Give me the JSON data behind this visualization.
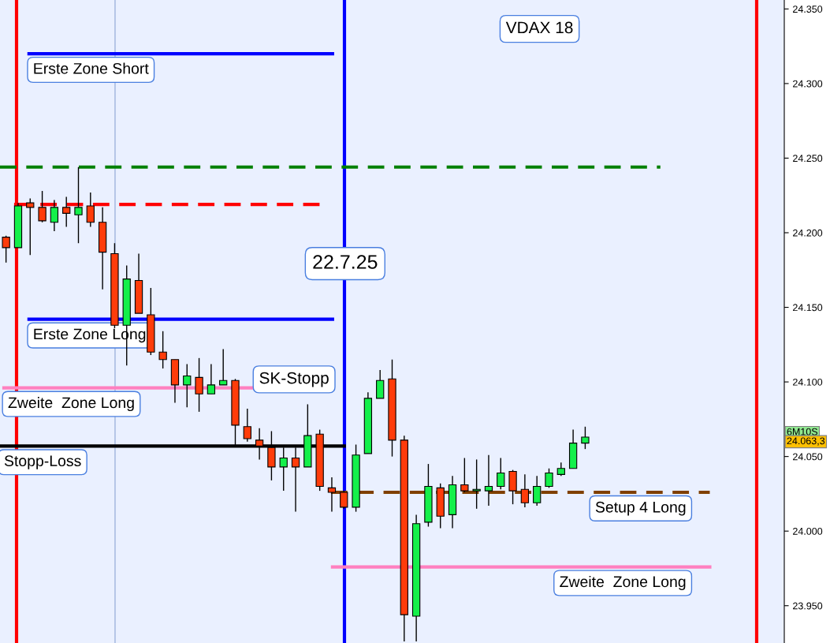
{
  "chart_data": {
    "type": "candlestick",
    "categories": [
      null,
      null,
      null,
      null,
      null,
      null,
      null,
      null,
      null,
      null,
      null,
      null,
      null,
      null,
      null,
      null,
      null,
      null,
      null,
      null,
      null,
      null,
      null,
      null,
      null,
      null,
      null,
      null,
      null,
      null,
      null,
      null,
      null,
      null,
      null,
      null,
      null,
      null,
      null,
      null,
      null,
      null,
      null,
      null,
      null,
      null,
      null,
      null,
      null,
      null,
      null,
      null,
      null,
      null,
      null,
      null,
      null,
      null,
      null,
      null,
      null,
      null,
      null,
      null,
      null
    ],
    "ohlc": [
      [
        24197,
        24198,
        24180,
        24190
      ],
      [
        24190,
        24220,
        24190,
        24218
      ],
      [
        24220,
        24223,
        24185,
        24217
      ],
      [
        24217,
        24228,
        24207,
        24208
      ],
      [
        24207,
        24222,
        24201,
        24217
      ],
      [
        24217,
        24224,
        24204,
        24213
      ],
      [
        24212,
        24244,
        24193,
        24217
      ],
      [
        24218,
        24227,
        24204,
        24207
      ],
      [
        24207,
        24217,
        24162,
        24187
      ],
      [
        24186,
        24193,
        24136,
        24138
      ],
      [
        24138,
        24178,
        24111,
        24169
      ],
      [
        24168,
        24186,
        24146,
        24146
      ],
      [
        24145,
        24163,
        24118,
        24120
      ],
      [
        24120,
        24134,
        24109,
        24115
      ],
      [
        24115,
        24115,
        24086,
        24098
      ],
      [
        24098,
        24112,
        24083,
        24104
      ],
      [
        24103,
        24116,
        24080,
        24092
      ],
      [
        24092,
        24112,
        24092,
        24098
      ],
      [
        24098,
        24122,
        24098,
        24101
      ],
      [
        24101,
        24102,
        24057,
        24071
      ],
      [
        24070,
        24082,
        24060,
        24062
      ],
      [
        24061,
        24069,
        24048,
        24057
      ],
      [
        24056,
        24067,
        24034,
        24043
      ],
      [
        24043,
        24056,
        24027,
        24049
      ],
      [
        24049,
        24056,
        24013,
        24043
      ],
      [
        24043,
        24085,
        24043,
        24064
      ],
      [
        24065,
        24068,
        24027,
        24030
      ],
      [
        24029,
        24036,
        24013,
        24026
      ],
      [
        24026,
        24027,
        24015,
        24016
      ],
      [
        24016,
        24058,
        24013,
        24051
      ],
      [
        24052,
        24093,
        24052,
        24089
      ],
      [
        24089,
        24108,
        24089,
        24101
      ],
      [
        24102,
        24115,
        24050,
        24061
      ],
      [
        24061,
        24064,
        23926,
        23944
      ],
      [
        23943,
        24011,
        23926,
        24005
      ],
      [
        24006,
        24045,
        24003,
        24030
      ],
      [
        24029,
        24032,
        24002,
        24010
      ],
      [
        24011,
        24037,
        24002,
        24031
      ],
      [
        24031,
        24049,
        24026,
        24027
      ],
      [
        24027,
        24048,
        24015,
        24028
      ],
      [
        24027,
        24051,
        24017,
        24030
      ],
      [
        24030,
        24049,
        24028,
        24039
      ],
      [
        24040,
        24041,
        24018,
        24027
      ],
      [
        24028,
        24038,
        24016,
        24019
      ],
      [
        24019,
        24037,
        24017,
        24030
      ],
      [
        24030,
        24042,
        24029,
        24039
      ],
      [
        24038,
        24046,
        24037,
        24042
      ],
      [
        24042,
        24068,
        24042,
        24059
      ],
      [
        24059,
        24070,
        24055,
        24063
      ],
      null,
      null,
      null,
      null,
      null,
      null,
      null,
      null,
      null,
      null,
      null,
      null,
      null,
      null,
      null,
      null
    ],
    "colors": [
      "#ff3c0a",
      "#14f04a",
      "#ff3c0a",
      "#ff3c0a",
      "#14f04a",
      "#ff3c0a",
      "#14f04a",
      "#ff3c0a",
      "#ff3c0a",
      "#ff3c0a",
      "#14f04a",
      "#ff3c0a",
      "#ff3c0a",
      "#ff3c0a",
      "#ff3c0a",
      "#14f04a",
      "#ff3c0a",
      "#14f04a",
      "#14f04a",
      "#ff3c0a",
      "#ff3c0a",
      "#ff3c0a",
      "#ff3c0a",
      "#14f04a",
      "#ff3c0a",
      "#14f04a",
      "#ff3c0a",
      "#ff3c0a",
      "#ff3c0a",
      "#14f04a",
      "#14f04a",
      "#14f04a",
      "#ff3c0a",
      "#ff3c0a",
      "#14f04a",
      "#14f04a",
      "#ff3c0a",
      "#14f04a",
      "#ff3c0a",
      "#14f04a",
      "#14f04a",
      "#14f04a",
      "#ff3c0a",
      "#ff3c0a",
      "#14f04a",
      "#14f04a",
      "#14f04a",
      "#14f04a",
      "#14f04a",
      null,
      null,
      null,
      null,
      null,
      null,
      null,
      null,
      null,
      null,
      null,
      null,
      null,
      null,
      null,
      null
    ],
    "ref_lines": [
      {
        "axis": "y",
        "value": 24320,
        "label": "Erste Zone Short",
        "color": "#0000ff"
      },
      {
        "axis": "y",
        "value": 24244,
        "color": "#008000",
        "line_style": "dashed"
      },
      {
        "axis": "y",
        "value": 24219,
        "color": "#ff0000",
        "line_style": "dashed"
      },
      {
        "axis": "y",
        "value": 24142,
        "label": "Erste Zone Long",
        "color": "#0000ff"
      },
      {
        "axis": "y",
        "value": 24096,
        "label": "Zweite  Zone Long",
        "color": "#ff80c0"
      },
      {
        "axis": "y",
        "value": 24057,
        "label": "Stopp-Loss",
        "color": "#000000"
      },
      {
        "axis": "y",
        "value": 24026,
        "label": "Setup 4 Long",
        "color": "#804000",
        "line_style": "dashed"
      },
      {
        "axis": "y",
        "value": 23976,
        "label": "Zweite  Zone Long",
        "color": "#ff80c0"
      }
    ],
    "annotations": [
      "VDAX 18",
      "SK-Stopp",
      "22.7.25",
      "6M10S",
      "24.063,3"
    ],
    "ylim": [
      23925,
      24356
    ],
    "yticks": [
      {
        "value": 23950,
        "label": "23.950"
      },
      {
        "value": 24000,
        "label": "24.000"
      },
      {
        "value": 24050,
        "label": "24.050"
      },
      {
        "value": 24100,
        "label": "24.100"
      },
      {
        "value": 24150,
        "label": "24.150"
      },
      {
        "value": 24200,
        "label": "24.200"
      },
      {
        "value": 24250,
        "label": "24.250"
      },
      {
        "value": 24300,
        "label": "24.300"
      },
      {
        "value": 24350,
        "label": "24.350"
      }
    ],
    "tick_labels": "y"
  }
}
